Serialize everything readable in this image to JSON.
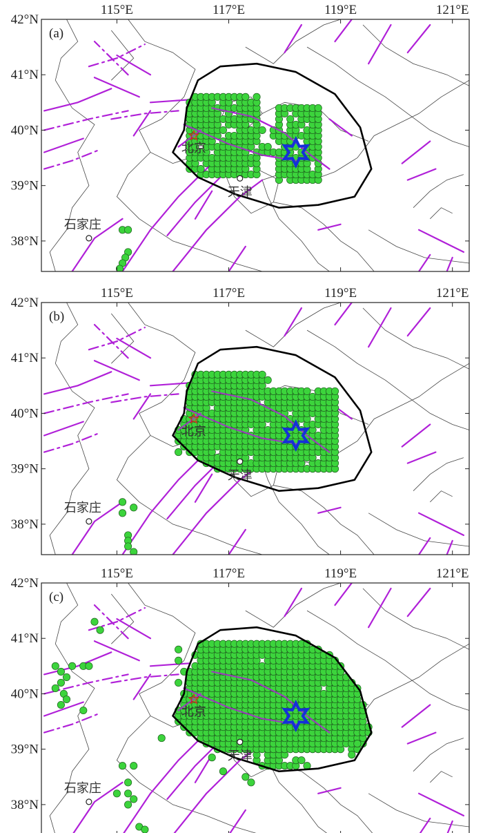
{
  "colors": {
    "fault": "#b020d8",
    "dot": "#3cd43c",
    "epicenter_star": "#1530d8",
    "capital_star": "#e02020",
    "region_outline": "#000000"
  },
  "axes": {
    "lon_ticks": [
      "115°E",
      "117°E",
      "119°E",
      "121°E"
    ],
    "lat_ticks": [
      "42°N",
      "41°N",
      "40°N",
      "39°N",
      "38°N"
    ]
  },
  "cities": [
    {
      "name": "北京",
      "lon": 116.4,
      "lat": 39.9
    },
    {
      "name": "天津",
      "lon": 117.2,
      "lat": 39.13
    },
    {
      "name": "石家庄",
      "lon": 114.5,
      "lat": 38.05
    }
  ],
  "epicenter": {
    "name": "star",
    "lon": 118.2,
    "lat": 39.6,
    "icon": "star-icon"
  },
  "panels": [
    {
      "tag": "(a)",
      "coverage": "small"
    },
    {
      "tag": "(b)",
      "coverage": "medium"
    },
    {
      "tag": "(c)",
      "coverage": "large"
    }
  ]
}
